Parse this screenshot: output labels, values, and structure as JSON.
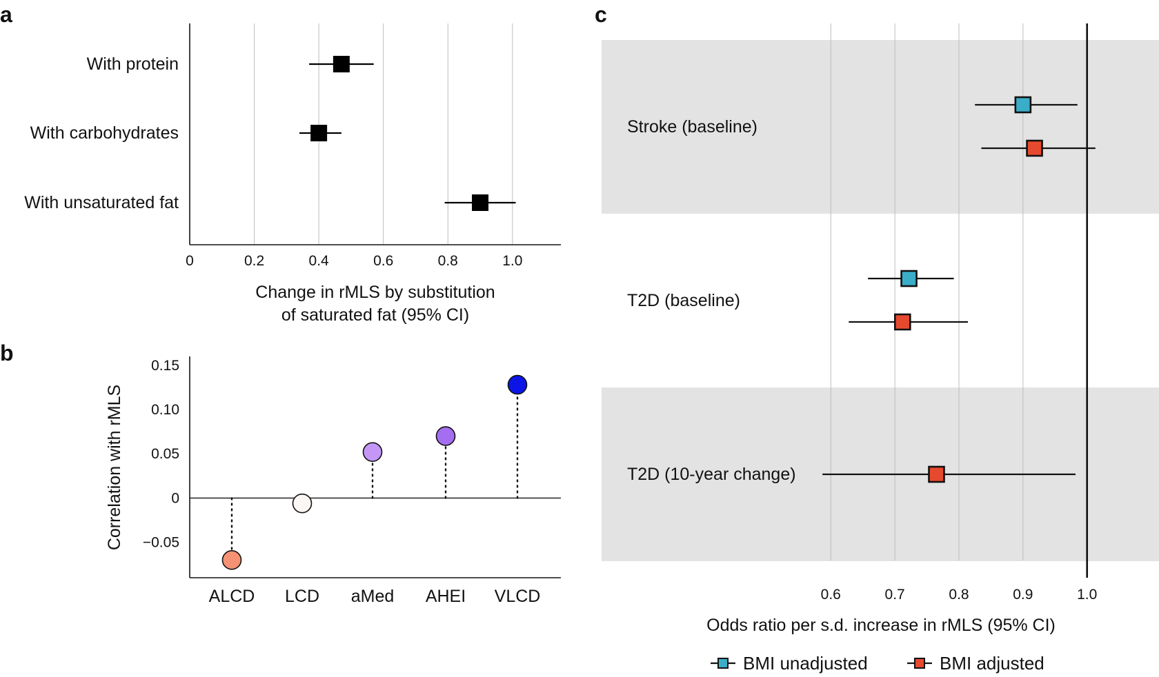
{
  "colors": {
    "marker_a": "#000000",
    "bmi_unadjusted": "#3aaec8",
    "bmi_adjusted": "#e64a2e",
    "band": "#e3e3e3",
    "gridline": "#bdbdbd",
    "b_alcd": "#f69274",
    "b_lcd": "#fcf7f4",
    "b_amed": "#c497f7",
    "b_ahei": "#a56ef0",
    "b_vlcd": "#0b16e6"
  },
  "chart_data": [
    {
      "panel": "a",
      "type": "scatter",
      "subtype": "forest",
      "title": "",
      "xlabel": [
        "Change in rMLS by substitution",
        "of saturated fat (95% CI)"
      ],
      "xlim": [
        0,
        1.15
      ],
      "xticks": [
        0,
        0.2,
        0.4,
        0.6,
        0.8,
        1.0
      ],
      "xtick_labels": [
        "0",
        "0.2",
        "0.4",
        "0.6",
        "0.8",
        "1.0"
      ],
      "grid": true,
      "rows": [
        {
          "label": "With protein",
          "estimate": 0.47,
          "lower": 0.37,
          "upper": 0.57
        },
        {
          "label": "With carbohydrates",
          "estimate": 0.4,
          "lower": 0.34,
          "upper": 0.47
        },
        {
          "label": "With unsaturated fat",
          "estimate": 0.9,
          "lower": 0.79,
          "upper": 1.01
        }
      ]
    },
    {
      "panel": "b",
      "type": "scatter",
      "subtype": "lollipop",
      "title": "",
      "ylabel": "Correlation with rMLS",
      "ylim": [
        -0.09,
        0.16
      ],
      "yticks": [
        -0.05,
        0,
        0.05,
        0.1,
        0.15
      ],
      "ytick_labels": [
        "−0.05",
        "0",
        "0.05",
        "0.10",
        "0.15"
      ],
      "categories": [
        "ALCD",
        "LCD",
        "aMed",
        "AHEI",
        "VLCD"
      ],
      "values": [
        -0.07,
        -0.006,
        0.052,
        0.07,
        0.128
      ]
    },
    {
      "panel": "c",
      "type": "scatter",
      "subtype": "forest",
      "title": "",
      "xlabel": "Odds ratio per s.d. increase in rMLS (95% CI)",
      "xlim": [
        0.52,
        1.08
      ],
      "xticks": [
        0.6,
        0.7,
        0.8,
        0.9,
        1.0
      ],
      "xtick_labels": [
        "0.6",
        "0.7",
        "0.8",
        "0.9",
        "1.0"
      ],
      "reference_line": 1.0,
      "grid": true,
      "legend_position": "bottom",
      "series": [
        {
          "name": "BMI unadjusted",
          "color_key": "bmi_unadjusted"
        },
        {
          "name": "BMI adjusted",
          "color_key": "bmi_adjusted"
        }
      ],
      "groups": [
        {
          "label": "Stroke (baseline)",
          "shaded": true,
          "points": [
            {
              "series": "BMI unadjusted",
              "estimate": 0.9,
              "lower": 0.825,
              "upper": 0.985
            },
            {
              "series": "BMI adjusted",
              "estimate": 0.918,
              "lower": 0.835,
              "upper": 1.013
            }
          ]
        },
        {
          "label": "T2D (baseline)",
          "shaded": false,
          "points": [
            {
              "series": "BMI unadjusted",
              "estimate": 0.722,
              "lower": 0.658,
              "upper": 0.792
            },
            {
              "series": "BMI adjusted",
              "estimate": 0.712,
              "lower": 0.628,
              "upper": 0.814
            }
          ]
        },
        {
          "label": "T2D (10-year change)",
          "shaded": true,
          "points": [
            {
              "series": "BMI adjusted",
              "estimate": 0.765,
              "lower": 0.587,
              "upper": 0.982
            }
          ]
        }
      ]
    }
  ],
  "panel_labels": [
    "a",
    "b",
    "c"
  ]
}
